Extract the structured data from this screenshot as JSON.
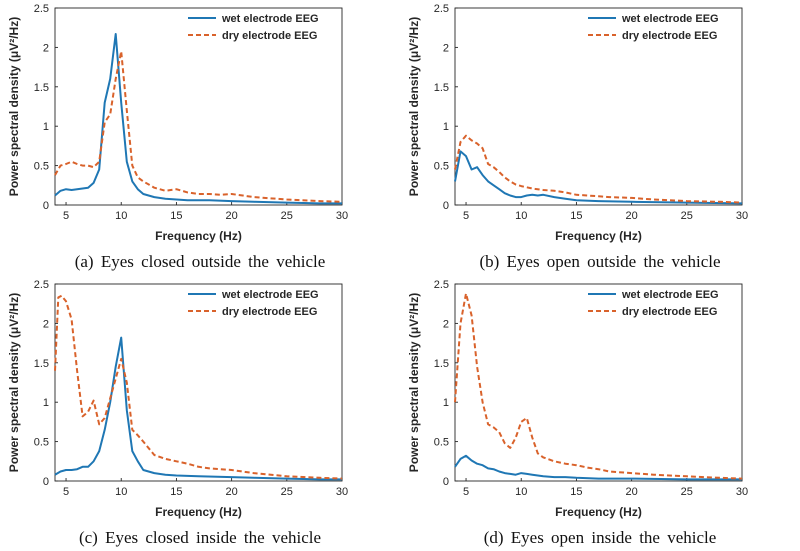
{
  "colors": {
    "wet": "#1f77b4",
    "dry": "#d9622b",
    "axis": "#262626"
  },
  "chart_data": [
    {
      "type": "line",
      "caption": "(a) Eyes closed outside the vehicle",
      "xlabel": "Frequency (Hz)",
      "ylabel": "Power spectral density (μV²/Hz)",
      "xlim": [
        4,
        30
      ],
      "ylim": [
        0,
        2.5
      ],
      "xticks": [
        5,
        10,
        15,
        20,
        25,
        30
      ],
      "yticks": [
        0,
        0.5,
        1,
        1.5,
        2,
        2.5
      ],
      "xtick_labels": [
        "5",
        "10",
        "15",
        "20",
        "25",
        "30"
      ],
      "ytick_labels": [
        "0",
        "0.5",
        "1",
        "1.5",
        "2",
        "2.5"
      ],
      "legend": [
        "wet electrode EEG",
        "dry electrode EEG"
      ],
      "legend_position": "top-right",
      "series": [
        {
          "name": "wet electrode EEG",
          "style": "solid",
          "x": [
            4,
            4.5,
            5,
            5.5,
            6,
            6.5,
            7,
            7.5,
            8,
            8.5,
            9,
            9.5,
            10,
            10.5,
            11,
            11.5,
            12,
            13,
            14,
            15,
            16,
            17,
            18,
            20,
            22,
            25,
            28,
            30
          ],
          "y": [
            0.12,
            0.18,
            0.2,
            0.19,
            0.2,
            0.21,
            0.22,
            0.28,
            0.45,
            1.3,
            1.6,
            2.17,
            1.3,
            0.55,
            0.3,
            0.2,
            0.14,
            0.1,
            0.08,
            0.07,
            0.06,
            0.06,
            0.06,
            0.05,
            0.04,
            0.03,
            0.02,
            0.02
          ]
        },
        {
          "name": "dry electrode EEG",
          "style": "dashed",
          "x": [
            4,
            4.5,
            5,
            5.5,
            6,
            6.5,
            7,
            7.5,
            8,
            8.5,
            9,
            9.5,
            10,
            10.5,
            11,
            11.5,
            12,
            13,
            14,
            15,
            16,
            17,
            18,
            19,
            20,
            21,
            22,
            25,
            28,
            30
          ],
          "y": [
            0.38,
            0.5,
            0.52,
            0.55,
            0.52,
            0.5,
            0.5,
            0.48,
            0.55,
            1.05,
            1.15,
            1.6,
            1.95,
            1.2,
            0.5,
            0.35,
            0.3,
            0.22,
            0.18,
            0.2,
            0.16,
            0.14,
            0.14,
            0.13,
            0.14,
            0.12,
            0.1,
            0.07,
            0.05,
            0.04
          ]
        }
      ]
    },
    {
      "type": "line",
      "caption": "(b) Eyes open outside the vehicle",
      "xlabel": "Frequency (Hz)",
      "ylabel": "Power spectral density (μV²/Hz)",
      "xlim": [
        4,
        30
      ],
      "ylim": [
        0,
        2.5
      ],
      "xticks": [
        5,
        10,
        15,
        20,
        25,
        30
      ],
      "yticks": [
        0,
        0.5,
        1,
        1.5,
        2,
        2.5
      ],
      "xtick_labels": [
        "5",
        "10",
        "15",
        "20",
        "25",
        "30"
      ],
      "ytick_labels": [
        "0",
        "0.5",
        "1",
        "1.5",
        "2",
        "2.5"
      ],
      "legend": [
        "wet electrode EEG",
        "dry electrode EEG"
      ],
      "legend_position": "top-right",
      "series": [
        {
          "name": "wet electrode EEG",
          "style": "solid",
          "x": [
            4,
            4.5,
            5,
            5.5,
            6,
            6.5,
            7,
            7.5,
            8,
            8.5,
            9,
            9.5,
            10,
            10.5,
            11,
            11.5,
            12,
            13,
            14,
            15,
            17,
            20,
            25,
            30
          ],
          "y": [
            0.3,
            0.68,
            0.62,
            0.45,
            0.48,
            0.38,
            0.3,
            0.25,
            0.2,
            0.15,
            0.12,
            0.1,
            0.1,
            0.12,
            0.13,
            0.12,
            0.13,
            0.1,
            0.08,
            0.06,
            0.05,
            0.04,
            0.03,
            0.02
          ]
        },
        {
          "name": "dry electrode EEG",
          "style": "dashed",
          "x": [
            4,
            4.5,
            5,
            5.5,
            6,
            6.5,
            7,
            7.5,
            8,
            8.5,
            9,
            9.5,
            10,
            11,
            12,
            13,
            14,
            15,
            16,
            17,
            18,
            20,
            22,
            25,
            28,
            30
          ],
          "y": [
            0.45,
            0.8,
            0.88,
            0.82,
            0.78,
            0.72,
            0.52,
            0.48,
            0.42,
            0.35,
            0.3,
            0.26,
            0.24,
            0.21,
            0.19,
            0.18,
            0.16,
            0.13,
            0.12,
            0.11,
            0.1,
            0.09,
            0.07,
            0.05,
            0.04,
            0.03
          ]
        }
      ]
    },
    {
      "type": "line",
      "caption": "(c) Eyes closed inside the vehicle",
      "xlabel": "Frequency (Hz)",
      "ylabel": "Power spectral density (μV²/Hz)",
      "xlim": [
        4,
        30
      ],
      "ylim": [
        0,
        2.5
      ],
      "xticks": [
        5,
        10,
        15,
        20,
        25,
        30
      ],
      "yticks": [
        0,
        0.5,
        1,
        1.5,
        2,
        2.5
      ],
      "xtick_labels": [
        "5",
        "10",
        "15",
        "20",
        "25",
        "30"
      ],
      "ytick_labels": [
        "0",
        "0.5",
        "1",
        "1.5",
        "2",
        "2.5"
      ],
      "legend": [
        "wet electrode EEG",
        "dry electrode EEG"
      ],
      "legend_position": "top-right",
      "series": [
        {
          "name": "wet electrode EEG",
          "style": "solid",
          "x": [
            4,
            4.5,
            5,
            5.5,
            6,
            6.5,
            7,
            7.5,
            8,
            8.5,
            9,
            9.5,
            10,
            10.5,
            11,
            11.5,
            12,
            13,
            14,
            15,
            17,
            20,
            22,
            25,
            28,
            30
          ],
          "y": [
            0.08,
            0.12,
            0.14,
            0.14,
            0.15,
            0.18,
            0.18,
            0.25,
            0.38,
            0.65,
            1.0,
            1.45,
            1.82,
            0.9,
            0.38,
            0.25,
            0.14,
            0.1,
            0.08,
            0.07,
            0.06,
            0.05,
            0.04,
            0.03,
            0.02,
            0.02
          ]
        },
        {
          "name": "dry electrode EEG",
          "style": "dashed",
          "x": [
            4,
            4.3,
            4.6,
            5,
            5.5,
            6,
            6.5,
            7,
            7.5,
            8,
            8.5,
            9,
            9.5,
            10,
            10.5,
            11,
            11.5,
            12,
            13,
            14,
            15,
            16,
            17,
            18,
            20,
            22,
            25,
            28,
            30
          ],
          "y": [
            1.4,
            2.33,
            2.35,
            2.28,
            2.05,
            1.4,
            0.82,
            0.88,
            1.02,
            0.72,
            0.8,
            1.05,
            1.3,
            1.55,
            1.25,
            0.65,
            0.58,
            0.5,
            0.33,
            0.28,
            0.25,
            0.22,
            0.18,
            0.16,
            0.14,
            0.1,
            0.06,
            0.04,
            0.03
          ]
        }
      ]
    },
    {
      "type": "line",
      "caption": "(d) Eyes open inside the vehicle",
      "xlabel": "Frequency (Hz)",
      "ylabel": "Power spectral density (μV²/Hz)",
      "xlim": [
        4,
        30
      ],
      "ylim": [
        0,
        2.5
      ],
      "xticks": [
        5,
        10,
        15,
        20,
        25,
        30
      ],
      "yticks": [
        0,
        0.5,
        1,
        1.5,
        2,
        2.5
      ],
      "xtick_labels": [
        "5",
        "10",
        "15",
        "20",
        "25",
        "30"
      ],
      "ytick_labels": [
        "0",
        "0.5",
        "1",
        "1.5",
        "2",
        "2.5"
      ],
      "legend": [
        "wet electrode EEG",
        "dry electrode EEG"
      ],
      "legend_position": "top-right",
      "series": [
        {
          "name": "wet electrode EEG",
          "style": "solid",
          "x": [
            4,
            4.5,
            5,
            5.5,
            6,
            6.5,
            7,
            7.5,
            8,
            8.5,
            9,
            9.5,
            10,
            10.5,
            11,
            12,
            13,
            14,
            15,
            17,
            20,
            25,
            30
          ],
          "y": [
            0.18,
            0.28,
            0.32,
            0.26,
            0.22,
            0.2,
            0.16,
            0.15,
            0.12,
            0.1,
            0.09,
            0.08,
            0.1,
            0.09,
            0.08,
            0.06,
            0.05,
            0.05,
            0.04,
            0.03,
            0.03,
            0.02,
            0.02
          ]
        },
        {
          "name": "dry electrode EEG",
          "style": "dashed",
          "x": [
            4,
            4.5,
            5,
            5.5,
            6,
            6.5,
            7,
            7.5,
            8,
            8.5,
            9,
            9.5,
            10,
            10.5,
            11,
            11.5,
            12,
            13,
            14,
            15,
            16,
            17,
            18,
            20,
            22,
            25,
            28,
            30
          ],
          "y": [
            1.0,
            2.0,
            2.38,
            2.1,
            1.45,
            1.0,
            0.72,
            0.68,
            0.62,
            0.48,
            0.42,
            0.55,
            0.75,
            0.8,
            0.55,
            0.35,
            0.3,
            0.25,
            0.22,
            0.2,
            0.17,
            0.15,
            0.12,
            0.1,
            0.08,
            0.06,
            0.04,
            0.03
          ]
        }
      ]
    }
  ]
}
